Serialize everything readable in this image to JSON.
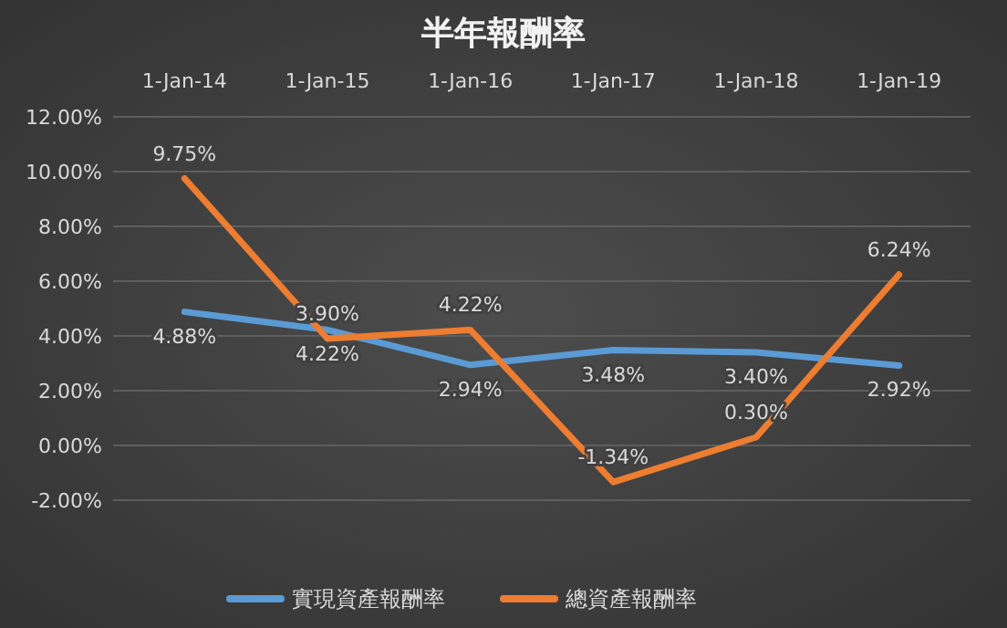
{
  "chart_data": {
    "type": "line",
    "title": "半年報酬率",
    "categories": [
      "1-Jan-14",
      "1-Jan-15",
      "1-Jan-16",
      "1-Jan-17",
      "1-Jan-18",
      "1-Jan-19"
    ],
    "series": [
      {
        "name": "實現資產報酬率",
        "color": "#5b9bd5",
        "values": [
          4.88,
          4.22,
          2.94,
          3.48,
          3.4,
          2.92
        ],
        "value_labels": [
          "4.88%",
          "4.22%",
          "2.94%",
          "3.48%",
          "3.40%",
          "2.92%"
        ]
      },
      {
        "name": "總資產報酬率",
        "color": "#ed7d31",
        "values": [
          9.75,
          3.9,
          4.22,
          -1.34,
          0.3,
          6.24
        ],
        "value_labels": [
          "9.75%",
          "3.90%",
          "4.22%",
          "-1.34%",
          "0.30%",
          "6.24%"
        ]
      }
    ],
    "ylim": [
      -2,
      12
    ],
    "yticks": [
      {
        "value": -2,
        "label": "-2.00%"
      },
      {
        "value": 0,
        "label": "0.00%"
      },
      {
        "value": 2,
        "label": "2.00%"
      },
      {
        "value": 4,
        "label": "4.00%"
      },
      {
        "value": 6,
        "label": "6.00%"
      },
      {
        "value": 8,
        "label": "8.00%"
      },
      {
        "value": 10,
        "label": "10.00%"
      },
      {
        "value": 12,
        "label": "12.00%"
      }
    ],
    "grid": "y",
    "legend": "bottom",
    "marker": "none",
    "line_style": "solid"
  }
}
